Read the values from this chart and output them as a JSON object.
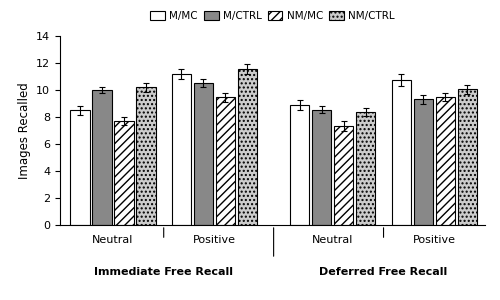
{
  "ylabel": "Images Recalled",
  "ylim": [
    0,
    14
  ],
  "yticks": [
    0,
    2,
    4,
    6,
    8,
    10,
    12,
    14
  ],
  "conditions": [
    "M/MC",
    "M/CTRL",
    "NM/MC",
    "NM/CTRL"
  ],
  "values": [
    [
      8.5,
      10.0,
      7.7,
      10.2
    ],
    [
      11.2,
      10.55,
      9.45,
      11.55
    ],
    [
      8.9,
      8.55,
      7.35,
      8.4
    ],
    [
      10.75,
      9.3,
      9.45,
      10.05
    ]
  ],
  "errors": [
    [
      0.35,
      0.25,
      0.3,
      0.35
    ],
    [
      0.35,
      0.3,
      0.35,
      0.4
    ],
    [
      0.35,
      0.25,
      0.35,
      0.3
    ],
    [
      0.45,
      0.3,
      0.3,
      0.35
    ]
  ],
  "bar_colors": [
    "white",
    "#888888",
    "white",
    "#cccccc"
  ],
  "bar_hatches": [
    "",
    "",
    "////",
    "...."
  ],
  "legend_labels": [
    "M/MC",
    "M/CTRL",
    "NM/MC",
    "NM/CTRL"
  ],
  "group_labels": [
    "Neutral",
    "Positive",
    "Neutral",
    "Positive"
  ],
  "section_labels": [
    "Immediate Free Recall",
    "Deferred Free Recall"
  ],
  "group_centers": [
    0.42,
    1.32,
    2.37,
    3.27
  ],
  "bar_width": 0.17,
  "bar_spacing": 0.195
}
